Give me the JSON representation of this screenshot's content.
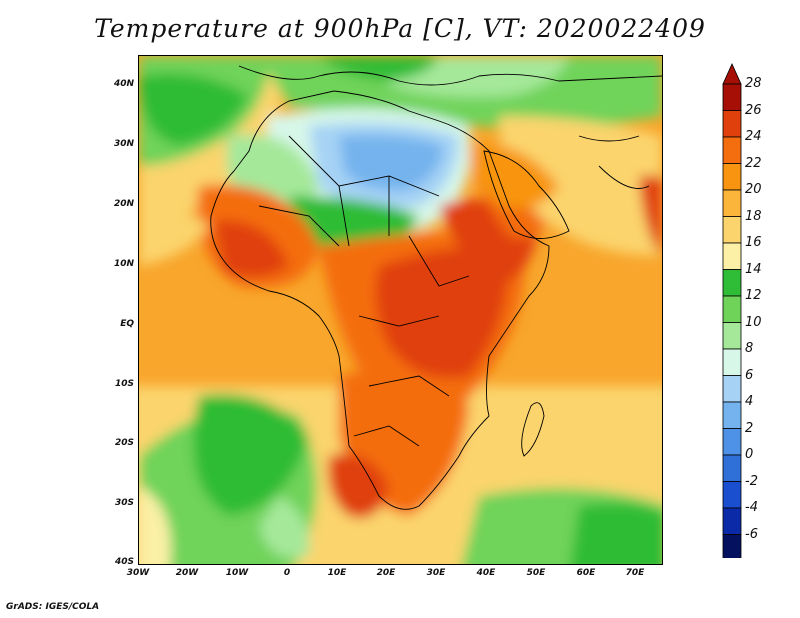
{
  "title": "Temperature at 900hPa [C], VT: 2020022409",
  "credit": "GrADS: IGES/COLA",
  "lat_labels": [
    "40N",
    "30N",
    "20N",
    "10N",
    "EQ",
    "10S",
    "20S",
    "30S",
    "40S"
  ],
  "lon_labels": [
    "30W",
    "20W",
    "10W",
    "0",
    "10E",
    "20E",
    "30E",
    "40E",
    "50E",
    "60E",
    "70E"
  ],
  "colorbar": {
    "labels": [
      "28",
      "26",
      "24",
      "22",
      "20",
      "18",
      "16",
      "14",
      "12",
      "10",
      "8",
      "6",
      "4",
      "2",
      "0",
      "-2",
      "-4",
      "-6"
    ],
    "colors": [
      "#a50f06",
      "#e0410c",
      "#f46d0e",
      "#f8940f",
      "#fab53a",
      "#fbd46d",
      "#fbf0a6",
      "#2fbc36",
      "#6fd35a",
      "#a5e89a",
      "#d7f7e9",
      "#a6d3f5",
      "#74b3ee",
      "#4d92e6",
      "#2f6fd8",
      "#1a4fcf",
      "#0b2aa8",
      "#04115e"
    ],
    "over_color": "#a50f06",
    "under_color": "#d8d8f8"
  }
}
